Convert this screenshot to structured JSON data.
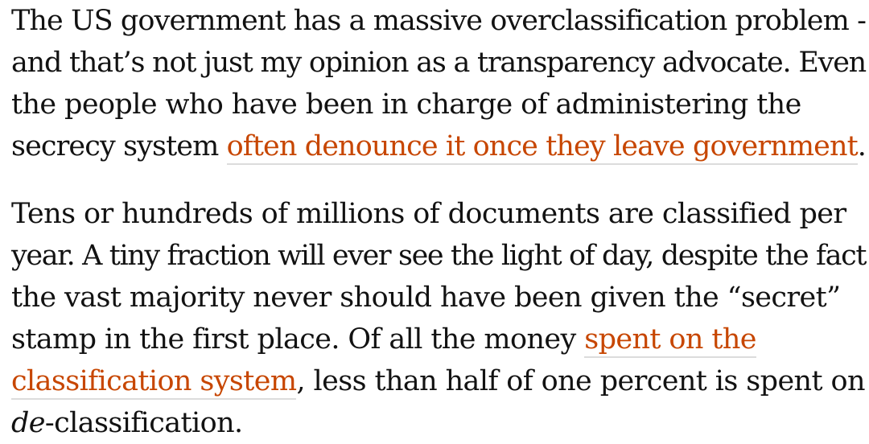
{
  "paragraph1": {
    "line1": "The US government has a massive overclassification problem -",
    "line2": "and that’s not just my opinion as a transparency advocate. Even",
    "line3": "the people who have been in charge of administering the",
    "line4_before": "secrecy system ",
    "link_text": "often denounce it once they leave government",
    "line4_after": "."
  },
  "paragraph2": {
    "line1": "Tens or hundreds of millions of documents are classified per",
    "line2": "year. A tiny fraction will ever see the light of day, despite the fact",
    "line3": "the vast majority never should have been given the “secret”",
    "line4_before": "stamp in the first place. Of all the money ",
    "link_part1": "spent on the",
    "link_part2": "classification system",
    "line5_after": ", less than half of one percent is spent on",
    "line6_em": "de",
    "line6_after": "-classification."
  },
  "colors": {
    "text": "#121212",
    "link": "#c74600",
    "link_underline": "#dcdcdc"
  }
}
